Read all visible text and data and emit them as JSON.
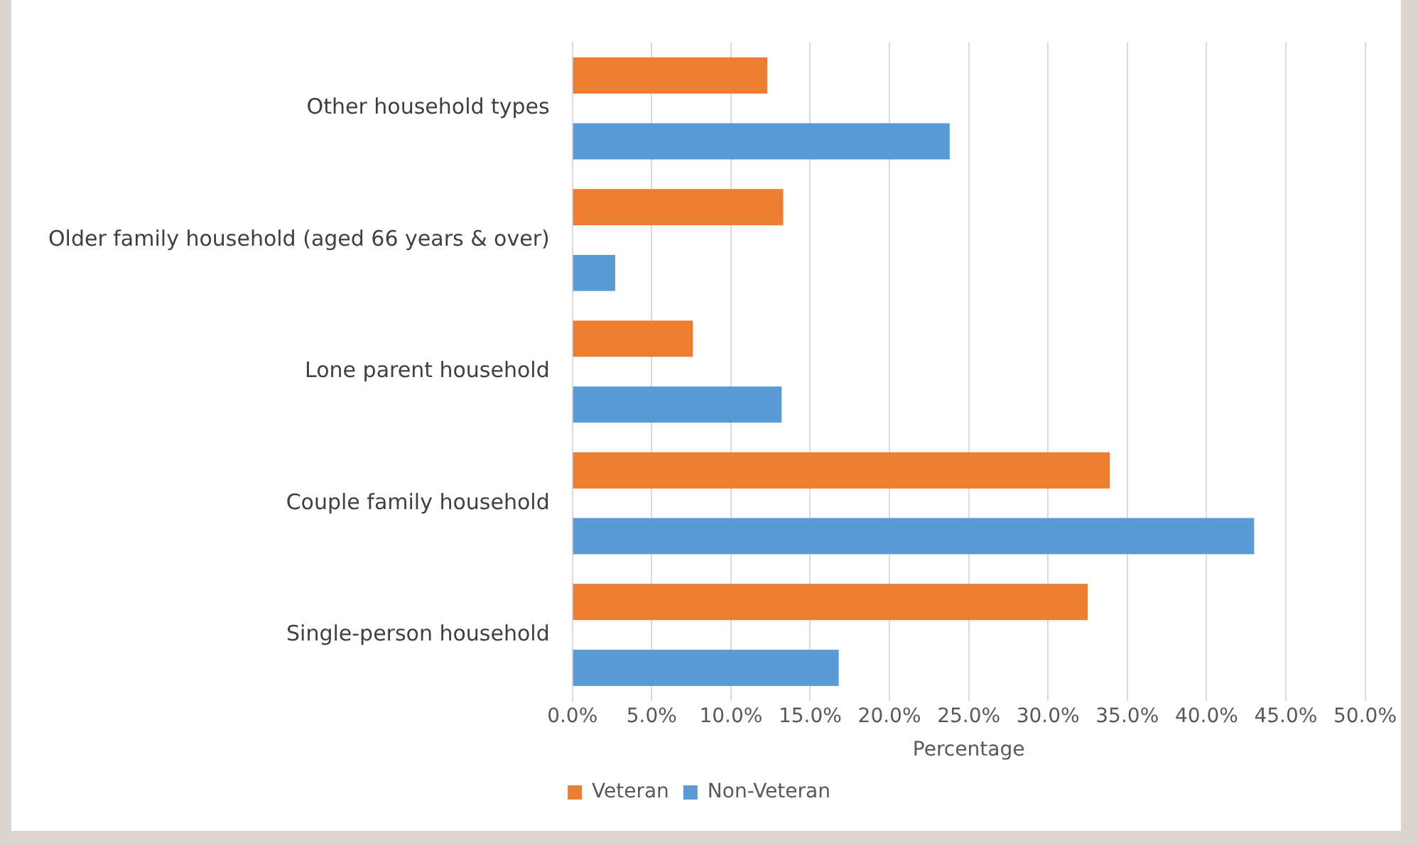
{
  "chart_data": {
    "type": "bar",
    "orientation": "horizontal",
    "xlabel": "Percentage",
    "categories": [
      "Other household types",
      "Older family household (aged 66 years & over)",
      "Lone parent household",
      "Couple family household",
      "Single-person household"
    ],
    "series": [
      {
        "name": "Veteran",
        "color": "#ed7d31",
        "values": [
          12.3,
          13.3,
          7.6,
          33.9,
          32.5
        ]
      },
      {
        "name": "Non-Veteran",
        "color": "#5b9bd5",
        "values": [
          23.8,
          2.7,
          13.2,
          43.0,
          16.8
        ]
      }
    ],
    "xlim": [
      0,
      50
    ],
    "xticks": [
      {
        "value": 0,
        "label": "0.0%"
      },
      {
        "value": 5,
        "label": "5.0%"
      },
      {
        "value": 10,
        "label": "10.0%"
      },
      {
        "value": 15,
        "label": "15.0%"
      },
      {
        "value": 20,
        "label": "20.0%"
      },
      {
        "value": 25,
        "label": "25.0%"
      },
      {
        "value": 30,
        "label": "30.0%"
      },
      {
        "value": 35,
        "label": "35.0%"
      },
      {
        "value": 40,
        "label": "40.0%"
      },
      {
        "value": 45,
        "label": "45.0%"
      },
      {
        "value": 50,
        "label": "50.0%"
      }
    ],
    "grid": "x",
    "legend": "bottom"
  }
}
